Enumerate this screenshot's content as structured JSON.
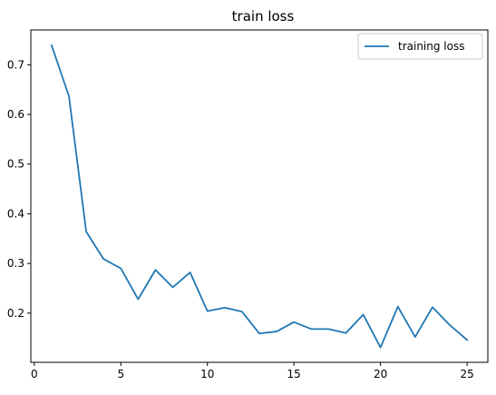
{
  "chart_data": {
    "type": "line",
    "title": "train loss",
    "xlabel": "",
    "ylabel": "",
    "xlim": [
      -0.2,
      26.2
    ],
    "ylim": [
      0.101,
      0.77
    ],
    "xticks": [
      0,
      5,
      10,
      15,
      20,
      25
    ],
    "yticks": [
      0.2,
      0.3,
      0.4,
      0.5,
      0.6,
      0.7
    ],
    "xtick_labels": [
      "0",
      "5",
      "10",
      "15",
      "20",
      "25"
    ],
    "ytick_labels": [
      "0.2",
      "0.3",
      "0.4",
      "0.5",
      "0.6",
      "0.7"
    ],
    "grid": false,
    "legend_position": "top-right",
    "series": [
      {
        "name": "training loss",
        "color": "#1f77b4",
        "x": [
          1,
          2,
          3,
          4,
          5,
          6,
          7,
          8,
          9,
          10,
          11,
          12,
          13,
          14,
          15,
          16,
          17,
          18,
          19,
          20,
          21,
          22,
          23,
          24,
          25
        ],
        "y": [
          0.739,
          0.637,
          0.364,
          0.309,
          0.29,
          0.228,
          0.287,
          0.252,
          0.282,
          0.204,
          0.211,
          0.203,
          0.159,
          0.163,
          0.182,
          0.168,
          0.168,
          0.16,
          0.197,
          0.131,
          0.213,
          0.152,
          0.212,
          0.176,
          0.146
        ]
      }
    ]
  }
}
